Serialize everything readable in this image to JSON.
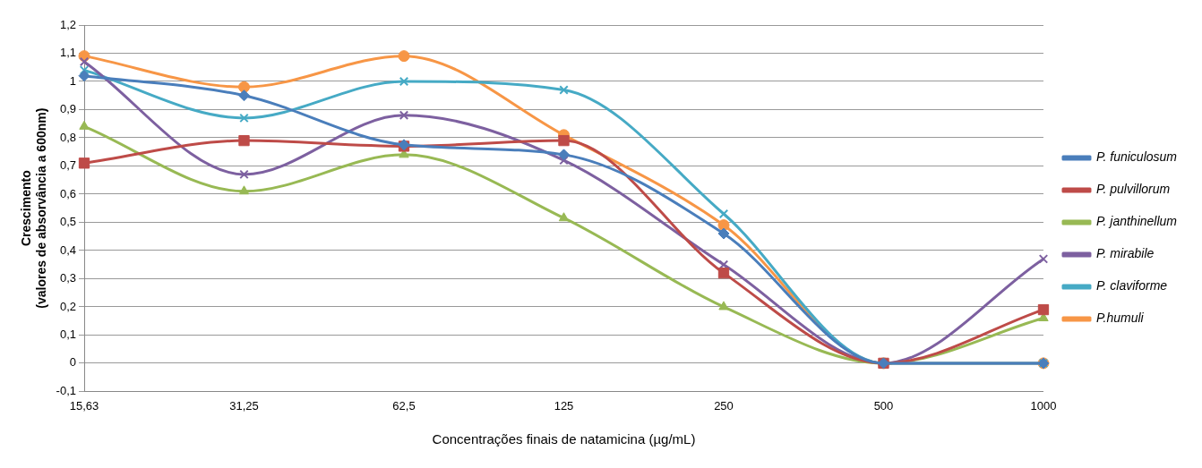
{
  "chart_data": {
    "type": "line",
    "xlabel": "Concentrações finais de natamicina (µg/mL)",
    "ylabel": "Crescimento\n(valores de absorvância a 600nm)",
    "categories": [
      "15,63",
      "31,25",
      "62,5",
      "125",
      "250",
      "500",
      "1000"
    ],
    "ylim": [
      -0.1,
      1.2
    ],
    "yticks": [
      {
        "value": -0.1,
        "label": "-0,1"
      },
      0,
      {
        "value": 0.1,
        "label": "0,1"
      },
      {
        "value": 0.2,
        "label": "0,2"
      },
      {
        "value": 0.3,
        "label": "0,3"
      },
      {
        "value": 0.4,
        "label": "0,4"
      },
      {
        "value": 0.5,
        "label": "0,5"
      },
      {
        "value": 0.6,
        "label": "0,6"
      },
      {
        "value": 0.7,
        "label": "0,7"
      },
      {
        "value": 0.8,
        "label": "0,8"
      },
      {
        "value": 0.9,
        "label": "0,9"
      },
      1,
      {
        "value": 1.1,
        "label": "1,1"
      },
      {
        "value": 1.2,
        "label": "1,2"
      }
    ],
    "grid": "y",
    "legend": "right",
    "series": [
      {
        "name": "P. funiculosum",
        "color": "#4a7ebb",
        "marker": "diamond",
        "values": [
          1.02,
          0.95,
          0.775,
          0.74,
          0.46,
          0,
          0
        ]
      },
      {
        "name": "P. pulvillorum",
        "color": "#be4b48",
        "marker": "square",
        "values": [
          0.71,
          0.79,
          0.77,
          0.79,
          0.32,
          0,
          0.19
        ]
      },
      {
        "name": "P. janthinellum",
        "color": "#98b954",
        "marker": "triangle",
        "values": [
          0.84,
          0.61,
          0.74,
          0.515,
          0.2,
          0,
          0.16
        ]
      },
      {
        "name": "P. mirabile",
        "color": "#7d60a0",
        "marker": "cross",
        "values": [
          1.07,
          0.67,
          0.88,
          0.72,
          0.35,
          0,
          0.37
        ]
      },
      {
        "name": "P. claviforme",
        "color": "#46aac5",
        "marker": "cross",
        "values": [
          1.04,
          0.87,
          1.0,
          0.97,
          0.53,
          0,
          0
        ]
      },
      {
        "name": "P.humuli",
        "color": "#f79646",
        "marker": "circle",
        "values": [
          1.09,
          0.98,
          1.09,
          0.81,
          0.49,
          0,
          0
        ]
      }
    ]
  }
}
